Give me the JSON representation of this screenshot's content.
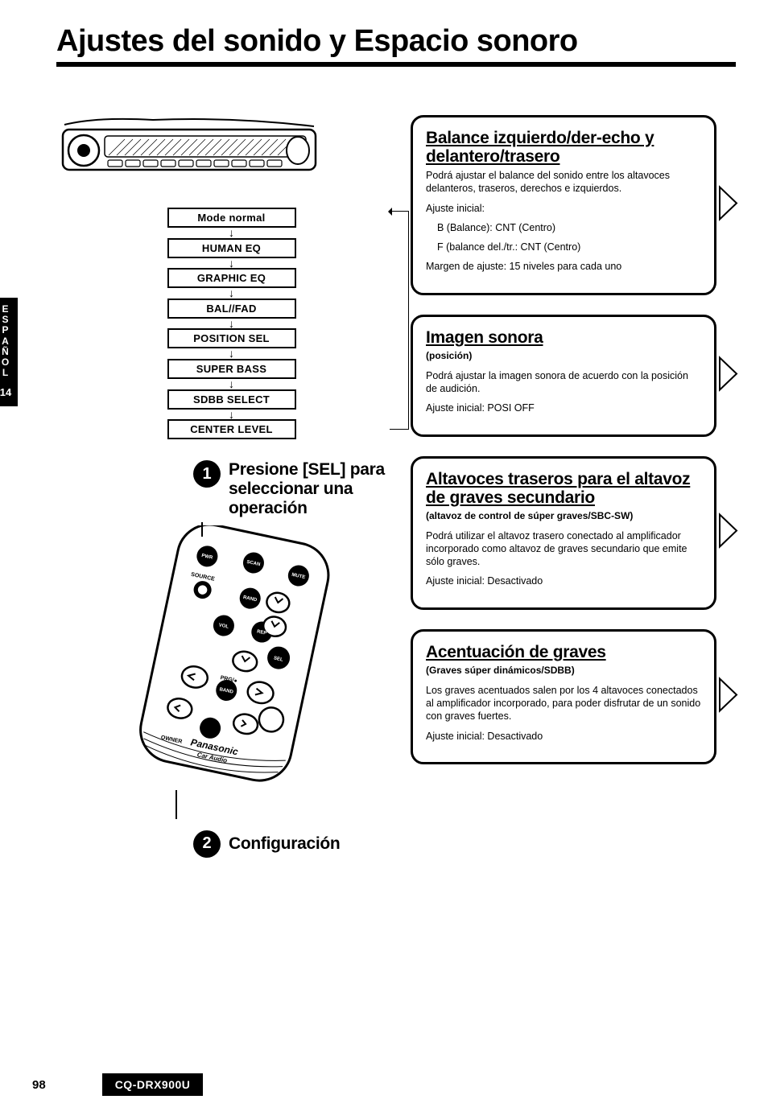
{
  "title": "Ajustes del sonido y Espacio sonoro",
  "side_tab": {
    "language": "ESPAÑOL",
    "page_section": "14"
  },
  "flow": {
    "items": [
      "Mode normal",
      "HUMAN EQ",
      "GRAPHIC EQ",
      "BAL//FAD",
      "POSITION SEL",
      "SUPER BASS",
      "SDBB SELECT",
      "CENTER LEVEL"
    ]
  },
  "steps": {
    "step1": {
      "num": "1",
      "text": "Presione [SEL] para seleccionar una operación"
    },
    "step2": {
      "num": "2",
      "text": "Configuración"
    }
  },
  "remote": {
    "brand": "Panasonic",
    "subbrand": "Car Audio",
    "buttons": [
      "PWR",
      "SCAN",
      "MUTE",
      "SOURCE",
      "RAND",
      "VOL",
      "REP",
      "SEL",
      "PRG",
      "BAND",
      "DISP"
    ]
  },
  "panels": [
    {
      "title": "Balance izquierdo/der-echo y delantero/trasero",
      "subtitle": "",
      "body": [
        "Podrá ajustar el balance del sonido entre los altavoces delanteros, traseros, derechos e izquierdos.",
        "Ajuste inicial:",
        "B (Balance): CNT (Centro)",
        "F (balance del./tr.: CNT (Centro)",
        "Margen de ajuste: 15 niveles para cada uno"
      ],
      "indent_lines": [
        2,
        3
      ]
    },
    {
      "title": "Imagen sonora",
      "subtitle": "(posición)",
      "body": [
        "Podrá ajustar la imagen sonora de acuerdo con la posición de audición.",
        "Ajuste inicial: POSI OFF"
      ],
      "indent_lines": []
    },
    {
      "title": "Altavoces traseros para el altavoz de graves secundario",
      "subtitle": "(altavoz de control de súper graves/SBC-SW)",
      "body": [
        "Podrá utilizar el altavoz trasero conectado al amplificador incorporado como altavoz de graves secundario que emite sólo graves.",
        "Ajuste inicial: Desactivado"
      ],
      "indent_lines": []
    },
    {
      "title": "Acentuación de graves",
      "subtitle": "(Graves súper dinámicos/SDBB)",
      "body": [
        "Los graves acentuados salen por los 4 altavoces conectados al amplificador incorporado, para poder disfrutar de un sonido con graves fuertes.",
        "Ajuste inicial: Desactivado"
      ],
      "indent_lines": []
    }
  ],
  "footer": {
    "page": "98",
    "model": "CQ-DRX900U"
  },
  "colors": {
    "fg": "#000000",
    "bg": "#ffffff"
  }
}
